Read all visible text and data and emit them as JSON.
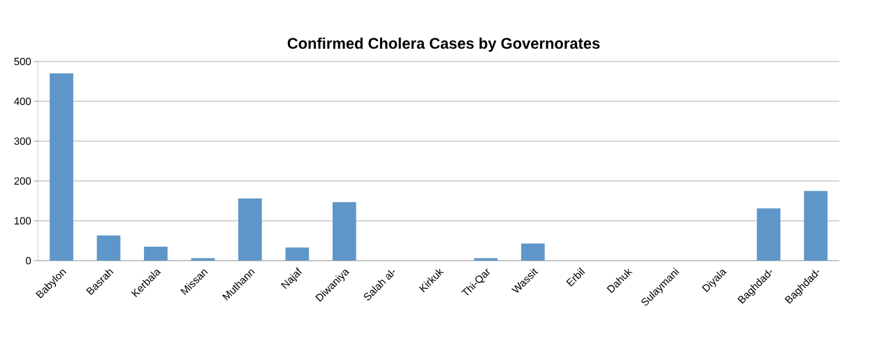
{
  "chart_data": {
    "type": "bar",
    "title": "Confirmed Cholera Cases by Governorates",
    "categories": [
      "Babylon",
      "Basrah",
      "Kerbala",
      "Missan",
      "Muthann",
      "Najaf",
      "Diwaniya",
      "Salah al-",
      "Kirkuk",
      "Thi-Qar",
      "Wassit",
      "Erbil",
      "Dahuk",
      "Sulaymani",
      "Diyala",
      "Baghdad-",
      "Baghdad-"
    ],
    "values": [
      470,
      63,
      35,
      6,
      156,
      33,
      147,
      0,
      null,
      6,
      43,
      null,
      null,
      0,
      null,
      131,
      175
    ],
    "color": "#5f96c9",
    "ylim": [
      0,
      500
    ],
    "yticks": [
      0,
      100,
      200,
      300,
      400,
      500
    ],
    "grid": "y"
  }
}
